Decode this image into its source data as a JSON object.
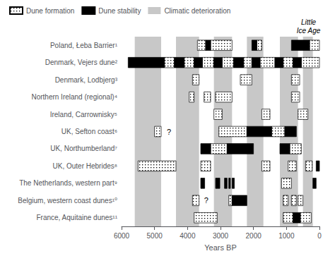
{
  "chart_data": {
    "type": "range_bar",
    "orientation": "horizontal",
    "xlabel": "Years BP",
    "categories": [
      "Poland, Łeba Barrier¹",
      "Denmark, Vejers dune²",
      "Denmark, Lodbjerg³",
      "Northern Ireland (regional)⁴",
      "Ireland, Carrownisky⁵",
      "UK, Sefton coast⁶",
      "UK, Northumberland⁷",
      "UK, Outer Hebrides⁸",
      "The Netherlands, western part⁹",
      "Belgium, western coast dunes¹⁰",
      "France, Aquitaine dunes¹¹"
    ],
    "xlim": [
      6000,
      0
    ],
    "xticks": [
      6000,
      5000,
      4000,
      3000,
      2000,
      1000,
      0
    ],
    "grid": false,
    "legend": "upper left",
    "series": [
      {
        "name": "Dune formation",
        "color": "#ffffff",
        "values": [
          [
            [
              3700,
              3450
            ],
            [
              3300,
              2650
            ],
            [
              1900,
              1750
            ],
            [
              300,
              0
            ]
          ],
          [
            [
              4700,
              4400
            ],
            [
              4100,
              3800
            ],
            [
              3550,
              3200
            ],
            [
              2950,
              2600
            ],
            [
              2300,
              2050
            ],
            [
              1800,
              1350
            ],
            [
              1100,
              800
            ],
            [
              550,
              0
            ]
          ],
          [
            [
              3850,
              3650
            ],
            [
              2400,
              2050
            ],
            [
              850,
              600
            ]
          ],
          [
            [
              3950,
              3800
            ],
            [
              3500,
              3300
            ],
            [
              3150,
              2650
            ],
            [
              850,
              600
            ]
          ],
          [
            [
              3200,
              2950
            ],
            [
              1750,
              1500
            ],
            [
              650,
              350
            ]
          ],
          [
            [
              5000,
              4800
            ],
            [
              3050,
              2200
            ],
            [
              1450,
              1050
            ]
          ],
          [
            [
              3300,
              2800
            ],
            [
              900,
              550
            ]
          ],
          [
            [
              5500,
              4350
            ],
            [
              3600,
              3300
            ],
            [
              1750,
              1500
            ],
            [
              950,
              700
            ],
            [
              420,
              220
            ]
          ],
          [
            [
              1150,
              850
            ]
          ],
          [
            [
              3850,
              3650
            ],
            [
              2750,
              2650
            ],
            [
              1100,
              950
            ],
            [
              850,
              700
            ],
            [
              650,
              500
            ]
          ],
          [
            [
              3800,
              3100
            ],
            [
              1100,
              800
            ],
            [
              580,
              250
            ]
          ]
        ]
      },
      {
        "name": "Dune stability",
        "color": "#000000",
        "values": [
          [
            [
              3450,
              3300
            ],
            [
              2050,
              1900
            ],
            [
              850,
              300
            ]
          ],
          [
            [
              5800,
              4700
            ],
            [
              4400,
              4100
            ],
            [
              3800,
              3550
            ],
            [
              3200,
              2950
            ],
            [
              2600,
              2300
            ],
            [
              2050,
              1800
            ],
            [
              1350,
              1100
            ],
            [
              800,
              550
            ]
          ],
          [],
          [],
          [],
          [
            [
              2200,
              1450
            ],
            [
              1050,
              700
            ]
          ],
          [
            [
              3600,
              3300
            ],
            [
              2800,
              2000
            ],
            [
              1200,
              900
            ]
          ],
          [
            [
              100,
              0
            ]
          ],
          [
            [
              3600,
              3480
            ],
            [
              3150,
              3020
            ],
            [
              2880,
              2800
            ],
            [
              2750,
              2700
            ],
            [
              2650,
              2580
            ],
            [
              200,
              100
            ]
          ],
          [
            [
              2650,
              2200
            ]
          ],
          [
            [
              800,
              580
            ]
          ]
        ]
      }
    ],
    "bands": {
      "name": "Climatic deterioration",
      "color": "#c8c8c8",
      "ranges": [
        [
          5600,
          4800
        ],
        [
          4350,
          3650
        ],
        [
          3200,
          2650
        ],
        [
          2200,
          1700
        ],
        [
          1200,
          650
        ],
        [
          500,
          200
        ]
      ]
    },
    "annotations": [
      {
        "text": "?",
        "category": "UK, Sefton coast⁶",
        "x": 4650
      },
      {
        "text": "?",
        "category": "Belgium, western coast dunes¹⁰",
        "x": 3520
      },
      {
        "text": "Little\nIce Age",
        "x": 330
      }
    ]
  }
}
